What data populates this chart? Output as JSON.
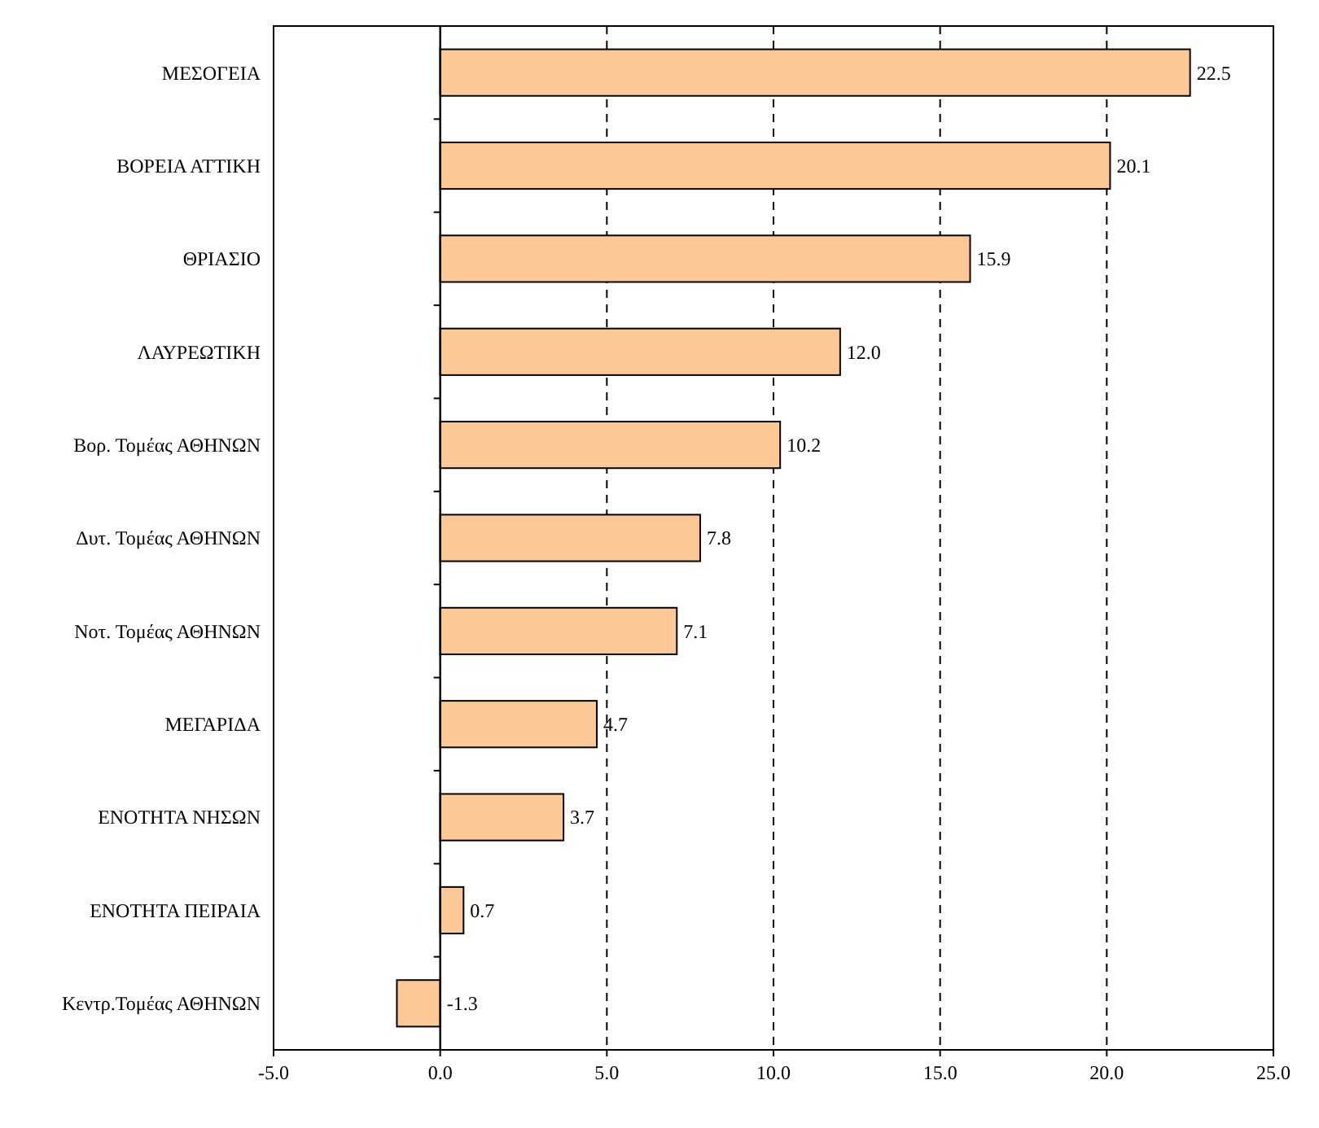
{
  "chart_data": {
    "type": "bar",
    "orientation": "horizontal",
    "categories": [
      "ΜΕΣΟΓΕΙΑ",
      "ΒΟΡΕΙΑ ΑΤΤΙΚΗ",
      "ΘΡΙΑΣΙΟ",
      "ΛΑΥΡΕΩΤΙΚΗ",
      "Βορ. Τομέας ΑΘΗΝΩΝ",
      "Δυτ. Τομέας ΑΘΗΝΩΝ",
      "Νοτ. Τομέας ΑΘΗΝΩΝ",
      "ΜΕΓΑΡΙΔΑ",
      "ΕΝΟΤΗΤΑ ΝΗΣΩΝ",
      "ΕΝΟΤΗΤΑ ΠΕΙΡΑΙΑ",
      "Κεντρ.Τομέας ΑΘΗΝΩΝ"
    ],
    "values": [
      22.5,
      20.1,
      15.9,
      12.0,
      10.2,
      7.8,
      7.1,
      4.7,
      3.7,
      0.7,
      -1.3
    ],
    "value_labels": [
      "22.5",
      "20.1",
      "15.9",
      "12.0",
      "10.2",
      "7.8",
      "7.1",
      "4.7",
      "3.7",
      "0.7",
      "-1.3"
    ],
    "color": "#fcc896",
    "xlim": [
      -5,
      25
    ],
    "xticks": [
      {
        "value": -5,
        "label": "-5.0"
      },
      {
        "value": 0,
        "label": "0.0"
      },
      {
        "value": 5,
        "label": "5.0"
      },
      {
        "value": 10,
        "label": "10.0"
      },
      {
        "value": 15,
        "label": "15.0"
      },
      {
        "value": 20,
        "label": "20.0"
      },
      {
        "value": 25,
        "label": "25.0"
      }
    ],
    "grid": "x"
  }
}
